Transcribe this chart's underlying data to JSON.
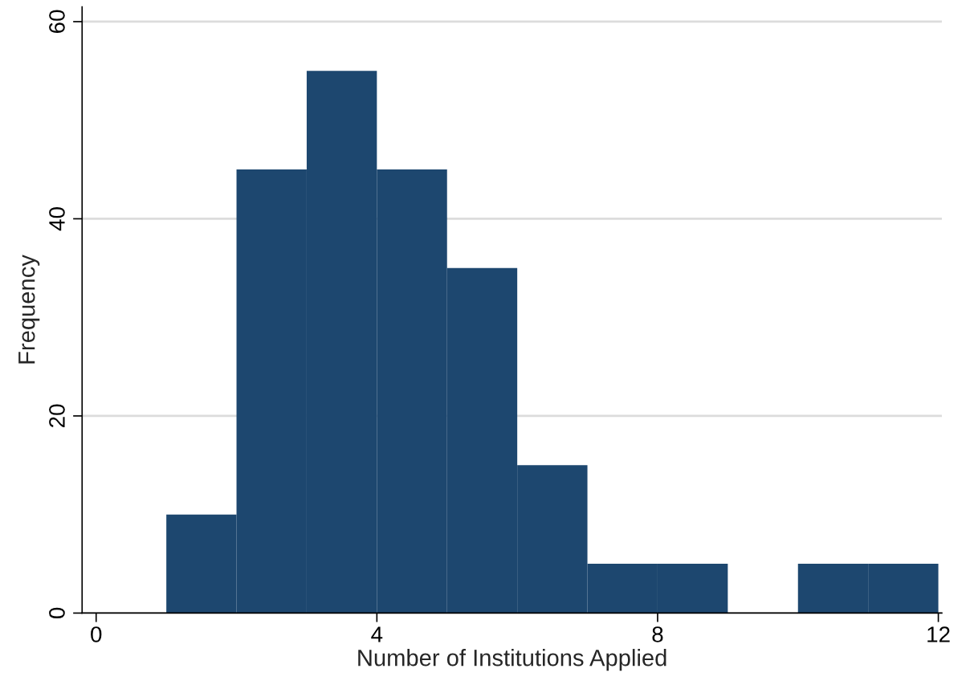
{
  "chart_data": {
    "type": "histogram",
    "xlabel": "Number of Institutions Applied",
    "ylabel": "Frequency",
    "bins": [
      1,
      2,
      3,
      4,
      5,
      6,
      7,
      8,
      9,
      10,
      11,
      12
    ],
    "values": [
      10,
      45,
      55,
      45,
      35,
      15,
      5,
      5,
      0,
      5,
      5
    ],
    "color": "#1d476f",
    "xlim": [
      -0.2,
      12.05
    ],
    "xticks": [
      0,
      4,
      8,
      12
    ],
    "ylim": [
      0,
      61.5
    ],
    "yticks": [
      0,
      20,
      40,
      60
    ],
    "grid": "y"
  }
}
